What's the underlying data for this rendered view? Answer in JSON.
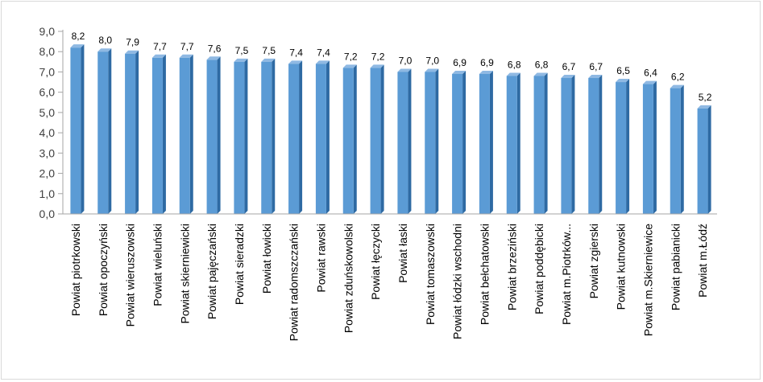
{
  "chart_data": {
    "type": "bar",
    "categories": [
      "Powiat piotrkowski",
      "Powiat opoczyński",
      "Powiat wieruszowski",
      "Powiat wieluński",
      "Powiat skierniewicki",
      "Powiat pajęczański",
      "Powiat sieradzki",
      "Powiat łowicki",
      "Powiat radomszczański",
      "Powiat rawski",
      "Powiat zduńskowolski",
      "Powiat łęczycki",
      "Powiat łaski",
      "Powiat tomaszowski",
      "Powiat łódzki wschodni",
      "Powiat bełchatowski",
      "Powiat brzeziński",
      "Powiat poddębicki",
      "Powiat m.Piotrków...",
      "Powiat zgierski",
      "Powiat kutnowski",
      "Powiat m.Skierniewice",
      "Powiat pabianicki",
      "Powiat m.Łódź"
    ],
    "values": [
      8.2,
      8.0,
      7.9,
      7.7,
      7.7,
      7.6,
      7.5,
      7.5,
      7.4,
      7.4,
      7.2,
      7.2,
      7.0,
      7.0,
      6.9,
      6.9,
      6.8,
      6.8,
      6.7,
      6.7,
      6.5,
      6.4,
      6.2,
      5.2
    ],
    "data_labels": [
      "8,2",
      "8,0",
      "7,9",
      "7,7",
      "7,7",
      "7,6",
      "7,5",
      "7,5",
      "7,4",
      "7,4",
      "7,2",
      "7,2",
      "7,0",
      "7,0",
      "6,9",
      "6,9",
      "6,8",
      "6,8",
      "6,7",
      "6,7",
      "6,5",
      "6,4",
      "6,2",
      "5,2"
    ],
    "y_ticks": [
      0,
      1,
      2,
      3,
      4,
      5,
      6,
      7,
      8,
      9
    ],
    "y_tick_labels": [
      "0,0",
      "1,0",
      "2,0",
      "3,0",
      "4,0",
      "5,0",
      "6,0",
      "7,0",
      "8,0",
      "9,0"
    ],
    "ylim": [
      0,
      9
    ],
    "title": "",
    "xlabel": "",
    "ylabel": "",
    "grid": false,
    "legend": "none",
    "style": "3d-column",
    "colors": {
      "bar_front": "#5b9bd5",
      "bar_side": "#2e6aa3",
      "bar_top": "#8fb9e3",
      "axis": "#a6a6a6"
    }
  }
}
